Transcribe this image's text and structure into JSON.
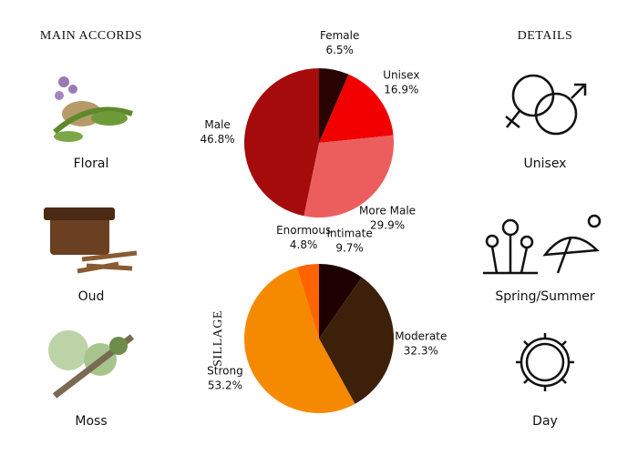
{
  "accords_title": "MAIN ACCORDS",
  "details_title": "DETAILS",
  "accords": [
    "Floral",
    "Oud",
    "Moss"
  ],
  "details": [
    "Unisex",
    "Spring/Summer",
    "Day"
  ],
  "chart_data": [
    {
      "type": "pie",
      "categories": [
        "Female",
        "Unisex",
        "More Male",
        "Male"
      ],
      "values": [
        6.5,
        16.9,
        29.9,
        46.8
      ],
      "value_labels": [
        "6.5%",
        "16.9%",
        "29.9%",
        "46.8%"
      ],
      "colors": [
        "#2a0303",
        "#f20000",
        "#ec5e5e",
        "#a50b0b"
      ]
    },
    {
      "type": "pie",
      "ylabel": "SILLAGE",
      "categories": [
        "Intimate",
        "Moderate",
        "Strong",
        "Enormous"
      ],
      "values": [
        9.7,
        32.3,
        53.2,
        4.8
      ],
      "value_labels": [
        "9.7%",
        "32.3%",
        "53.2%",
        "4.8%"
      ],
      "colors": [
        "#1e0000",
        "#3d200a",
        "#f58a00",
        "#ff6400"
      ]
    }
  ]
}
